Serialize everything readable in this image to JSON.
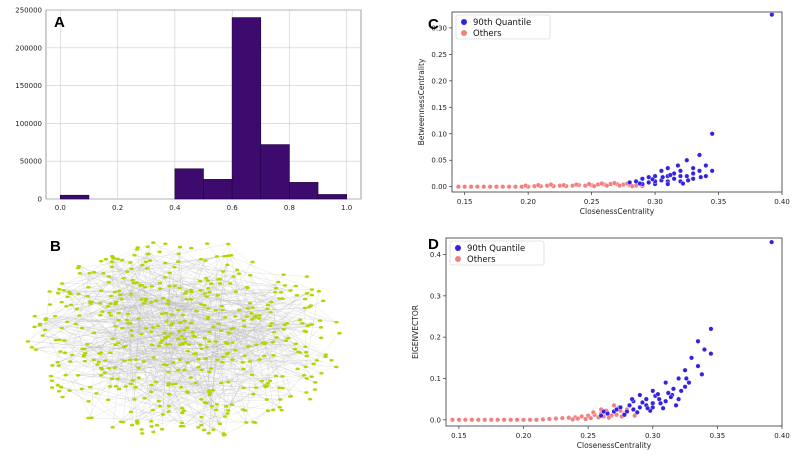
{
  "figure": {
    "panel_labels": [
      "A",
      "B",
      "C",
      "D"
    ]
  },
  "colors": {
    "bar": "#3d0a6e",
    "quantile": "#3322e0",
    "others": "#f28080",
    "node": "#b8d400",
    "edge": "#b4b4b4",
    "grid": "#cccccc"
  },
  "chart_data": [
    {
      "panel": "A",
      "type": "bar",
      "title": "",
      "xlabel": "",
      "ylabel": "",
      "bins": [
        [
          0.0,
          0.1
        ],
        [
          0.1,
          0.2
        ],
        [
          0.2,
          0.3
        ],
        [
          0.3,
          0.4
        ],
        [
          0.4,
          0.5
        ],
        [
          0.5,
          0.6
        ],
        [
          0.6,
          0.7
        ],
        [
          0.7,
          0.8
        ],
        [
          0.8,
          0.9
        ],
        [
          0.9,
          1.0
        ]
      ],
      "values": [
        5000,
        0,
        0,
        0,
        40000,
        26000,
        240000,
        72000,
        22000,
        6000
      ],
      "xlim": [
        -0.05,
        1.05
      ],
      "ylim": [
        0,
        250000
      ],
      "xticks": [
        0.0,
        0.2,
        0.4,
        0.6,
        0.8,
        1.0
      ],
      "xtick_labels": [
        "0.0",
        "0.2",
        "0.4",
        "0.6",
        "0.8",
        "1.0"
      ],
      "yticks": [
        0,
        50000,
        100000,
        150000,
        200000,
        250000
      ],
      "ytick_labels": [
        "0",
        "50000",
        "100000",
        "150000",
        "200000",
        "250000"
      ],
      "grid": true
    },
    {
      "panel": "B",
      "type": "network",
      "title": "",
      "description_node_count": 1100,
      "layout": "force-directed (dense core, ring of leaf nodes)"
    },
    {
      "panel": "C",
      "type": "scatter",
      "title": "",
      "xlabel": "ClosenessCentrality",
      "ylabel": "BetweennessCentrality",
      "xlim": [
        0.14,
        0.4
      ],
      "ylim": [
        -0.01,
        0.33
      ],
      "xticks": [
        0.15,
        0.2,
        0.25,
        0.3,
        0.35,
        0.4
      ],
      "xtick_labels": [
        "0.15",
        "0.20",
        "0.25",
        "0.30",
        "0.35",
        "0.40"
      ],
      "yticks": [
        0.0,
        0.05,
        0.1,
        0.15,
        0.2,
        0.25,
        0.3
      ],
      "ytick_labels": [
        "0.00",
        "0.05",
        "0.10",
        "0.15",
        "0.20",
        "0.25",
        "0.30"
      ],
      "legend": {
        "placement": "top-left",
        "entries": [
          "90th Quantile",
          "Others"
        ]
      },
      "series": [
        {
          "name": "90th Quantile",
          "points": [
            [
              0.392,
              0.325
            ],
            [
              0.345,
              0.1
            ],
            [
              0.335,
              0.06
            ],
            [
              0.325,
              0.05
            ],
            [
              0.34,
              0.04
            ],
            [
              0.33,
              0.035
            ],
            [
              0.318,
              0.04
            ],
            [
              0.31,
              0.035
            ],
            [
              0.305,
              0.03
            ],
            [
              0.32,
              0.03
            ],
            [
              0.315,
              0.025
            ],
            [
              0.3,
              0.02
            ],
            [
              0.295,
              0.018
            ],
            [
              0.31,
              0.02
            ],
            [
              0.325,
              0.02
            ],
            [
              0.33,
              0.025
            ],
            [
              0.335,
              0.03
            ],
            [
              0.34,
              0.02
            ],
            [
              0.345,
              0.03
            ],
            [
              0.29,
              0.015
            ],
            [
              0.285,
              0.01
            ],
            [
              0.28,
              0.008
            ],
            [
              0.29,
              0.005
            ],
            [
              0.3,
              0.005
            ],
            [
              0.31,
              0.01
            ],
            [
              0.32,
              0.01
            ],
            [
              0.315,
              0.015
            ],
            [
              0.305,
              0.012
            ],
            [
              0.295,
              0.008
            ],
            [
              0.3,
              0.01
            ],
            [
              0.31,
              0.005
            ],
            [
              0.32,
              0.02
            ],
            [
              0.33,
              0.015
            ],
            [
              0.322,
              0.006
            ],
            [
              0.312,
              0.022
            ],
            [
              0.298,
              0.014
            ],
            [
              0.288,
              0.006
            ],
            [
              0.306,
              0.018
            ],
            [
              0.326,
              0.012
            ],
            [
              0.336,
              0.018
            ]
          ]
        },
        {
          "name": "Others",
          "points": [
            [
              0.145,
              0.0
            ],
            [
              0.15,
              0.0
            ],
            [
              0.155,
              0.0
            ],
            [
              0.16,
              0.0
            ],
            [
              0.165,
              0.0
            ],
            [
              0.17,
              0.0
            ],
            [
              0.175,
              0.0
            ],
            [
              0.18,
              0.0
            ],
            [
              0.185,
              0.0
            ],
            [
              0.19,
              0.0
            ],
            [
              0.195,
              0.0
            ],
            [
              0.2,
              0.0
            ],
            [
              0.205,
              0.001
            ],
            [
              0.21,
              0.001
            ],
            [
              0.215,
              0.002
            ],
            [
              0.22,
              0.001
            ],
            [
              0.225,
              0.002
            ],
            [
              0.23,
              0.001
            ],
            [
              0.235,
              0.002
            ],
            [
              0.24,
              0.003
            ],
            [
              0.245,
              0.002
            ],
            [
              0.25,
              0.003
            ],
            [
              0.255,
              0.004
            ],
            [
              0.26,
              0.004
            ],
            [
              0.265,
              0.005
            ],
            [
              0.27,
              0.005
            ],
            [
              0.275,
              0.004
            ],
            [
              0.28,
              0.003
            ],
            [
              0.285,
              0.002
            ],
            [
              0.29,
              0.001
            ],
            [
              0.252,
              0.001
            ],
            [
              0.262,
              0.002
            ],
            [
              0.272,
              0.002
            ],
            [
              0.282,
              0.001
            ],
            [
              0.268,
              0.007
            ],
            [
              0.258,
              0.006
            ],
            [
              0.248,
              0.005
            ],
            [
              0.278,
              0.006
            ],
            [
              0.238,
              0.004
            ],
            [
              0.228,
              0.003
            ],
            [
              0.218,
              0.004
            ],
            [
              0.208,
              0.003
            ],
            [
              0.198,
              0.002
            ]
          ]
        }
      ]
    },
    {
      "panel": "D",
      "type": "scatter",
      "title": "",
      "xlabel": "ClosenessCentrality",
      "ylabel": "EIGENVECTOR",
      "xlim": [
        0.14,
        0.4
      ],
      "ylim": [
        -0.015,
        0.44
      ],
      "xticks": [
        0.15,
        0.2,
        0.25,
        0.3,
        0.35,
        0.4
      ],
      "xtick_labels": [
        "0.15",
        "0.20",
        "0.25",
        "0.30",
        "0.35",
        "0.40"
      ],
      "yticks": [
        0.0,
        0.1,
        0.2,
        0.3,
        0.4
      ],
      "ytick_labels": [
        "0.0",
        "0.1",
        "0.2",
        "0.3",
        "0.4"
      ],
      "legend": {
        "placement": "top-left",
        "entries": [
          "90th Quantile",
          "Others"
        ]
      },
      "series": [
        {
          "name": "90th Quantile",
          "points": [
            [
              0.392,
              0.43
            ],
            [
              0.345,
              0.22
            ],
            [
              0.34,
              0.17
            ],
            [
              0.335,
              0.19
            ],
            [
              0.345,
              0.16
            ],
            [
              0.33,
              0.15
            ],
            [
              0.325,
              0.12
            ],
            [
              0.335,
              0.13
            ],
            [
              0.32,
              0.1
            ],
            [
              0.31,
              0.09
            ],
            [
              0.325,
              0.08
            ],
            [
              0.3,
              0.07
            ],
            [
              0.315,
              0.06
            ],
            [
              0.305,
              0.05
            ],
            [
              0.3,
              0.04
            ],
            [
              0.295,
              0.035
            ],
            [
              0.29,
              0.03
            ],
            [
              0.285,
              0.025
            ],
            [
              0.28,
              0.02
            ],
            [
              0.32,
              0.05
            ],
            [
              0.31,
              0.045
            ],
            [
              0.3,
              0.03
            ],
            [
              0.295,
              0.05
            ],
            [
              0.29,
              0.06
            ],
            [
              0.285,
              0.045
            ],
            [
              0.275,
              0.03
            ],
            [
              0.27,
              0.02
            ],
            [
              0.265,
              0.015
            ],
            [
              0.26,
              0.01
            ],
            [
              0.322,
              0.07
            ],
            [
              0.312,
              0.065
            ],
            [
              0.318,
              0.035
            ],
            [
              0.308,
              0.028
            ],
            [
              0.298,
              0.022
            ],
            [
              0.288,
              0.018
            ],
            [
              0.278,
              0.012
            ],
            [
              0.328,
              0.09
            ],
            [
              0.302,
              0.058
            ],
            [
              0.292,
              0.042
            ],
            [
              0.282,
              0.035
            ],
            [
              0.316,
              0.075
            ],
            [
              0.306,
              0.04
            ],
            [
              0.296,
              0.028
            ],
            [
              0.272,
              0.025
            ],
            [
              0.262,
              0.02
            ],
            [
              0.338,
              0.11
            ],
            [
              0.326,
              0.1
            ],
            [
              0.314,
              0.055
            ],
            [
              0.304,
              0.062
            ],
            [
              0.284,
              0.05
            ]
          ]
        },
        {
          "name": "Others",
          "points": [
            [
              0.145,
              0.0
            ],
            [
              0.15,
              0.0
            ],
            [
              0.155,
              0.0
            ],
            [
              0.16,
              0.0
            ],
            [
              0.165,
              0.0
            ],
            [
              0.17,
              0.0
            ],
            [
              0.175,
              0.0
            ],
            [
              0.18,
              0.0
            ],
            [
              0.185,
              0.0
            ],
            [
              0.19,
              0.0
            ],
            [
              0.195,
              0.0
            ],
            [
              0.2,
              0.0
            ],
            [
              0.205,
              0.0
            ],
            [
              0.21,
              0.0
            ],
            [
              0.215,
              0.001
            ],
            [
              0.22,
              0.002
            ],
            [
              0.225,
              0.003
            ],
            [
              0.23,
              0.004
            ],
            [
              0.235,
              0.005
            ],
            [
              0.24,
              0.006
            ],
            [
              0.245,
              0.008
            ],
            [
              0.25,
              0.01
            ],
            [
              0.255,
              0.012
            ],
            [
              0.26,
              0.015
            ],
            [
              0.265,
              0.018
            ],
            [
              0.27,
              0.02
            ],
            [
              0.275,
              0.022
            ],
            [
              0.28,
              0.025
            ],
            [
              0.252,
              0.004
            ],
            [
              0.258,
              0.006
            ],
            [
              0.262,
              0.008
            ],
            [
              0.268,
              0.01
            ],
            [
              0.272,
              0.012
            ],
            [
              0.278,
              0.015
            ],
            [
              0.248,
              0.002
            ],
            [
              0.242,
              0.003
            ],
            [
              0.238,
              0.001
            ],
            [
              0.254,
              0.018
            ],
            [
              0.264,
              0.022
            ],
            [
              0.274,
              0.03
            ],
            [
              0.26,
              0.025
            ],
            [
              0.27,
              0.035
            ],
            [
              0.266,
              0.005
            ],
            [
              0.276,
              0.008
            ],
            [
              0.286,
              0.01
            ]
          ]
        }
      ]
    }
  ]
}
